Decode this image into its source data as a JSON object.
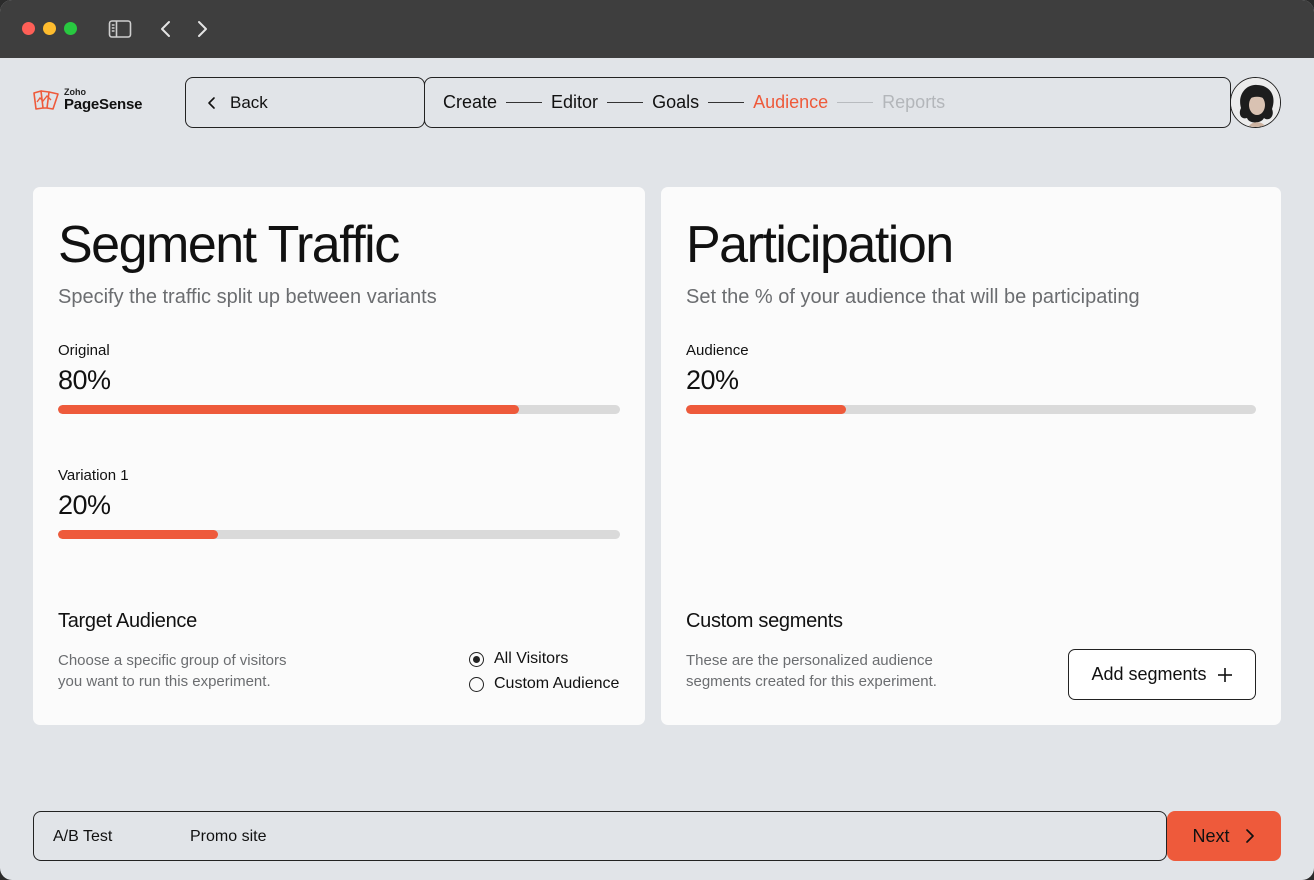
{
  "window": {
    "controls": [
      "close",
      "minimize",
      "zoom"
    ],
    "toolbar_icons": [
      "sidebar-icon",
      "back-arrow-icon",
      "forward-arrow-icon"
    ]
  },
  "header": {
    "logo_small": "Zoho",
    "logo_big": "PageSense",
    "back_label": "Back",
    "steps": [
      {
        "label": "Create",
        "state": "done"
      },
      {
        "label": "Editor",
        "state": "done"
      },
      {
        "label": "Goals",
        "state": "done"
      },
      {
        "label": "Audience",
        "state": "active"
      },
      {
        "label": "Reports",
        "state": "disabled"
      }
    ]
  },
  "segment": {
    "title": "Segment Traffic",
    "subtitle": "Specify the traffic split up between variants",
    "variants": [
      {
        "label": "Original",
        "value": "80%",
        "fraction": 0.82
      },
      {
        "label": "Variation 1",
        "value": "20%",
        "fraction": 0.285
      }
    ],
    "target": {
      "title": "Target Audience",
      "desc_line1": "Choose a specific group of visitors",
      "desc_line2": "you want to run this experiment.",
      "options": [
        {
          "label": "All Visitors",
          "selected": true
        },
        {
          "label": "Custom Audience",
          "selected": false
        }
      ]
    }
  },
  "participation": {
    "title": "Participation",
    "subtitle": "Set the % of your audience that will be participating",
    "audience_label": "Audience",
    "audience_value": "20%",
    "audience_fraction": 0.28,
    "custom": {
      "title": "Custom segments",
      "desc_line1": "These are the personalized audience",
      "desc_line2": "segments created for this experiment.",
      "add_label": "Add segments"
    }
  },
  "footer": {
    "test_type": "A/B Test",
    "site": "Promo site",
    "next_label": "Next"
  },
  "colors": {
    "accent": "#ee5a3b",
    "background": "#e1e4e8",
    "card": "#fbfbfb",
    "titlebar": "#3e3e3e"
  }
}
